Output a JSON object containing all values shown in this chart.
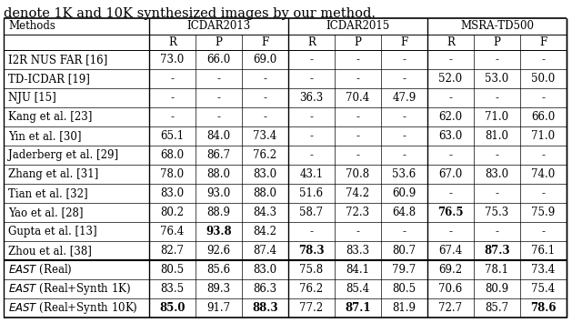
{
  "caption": "denote 1K and 10K synthesized images by our method.",
  "rows": [
    {
      "method": "I2R NUS FAR [16]",
      "italic": false,
      "values": [
        "73.0",
        "66.0",
        "69.0",
        "-",
        "-",
        "-",
        "-",
        "-",
        "-"
      ],
      "bold": []
    },
    {
      "method": "TD-ICDAR [19]",
      "italic": false,
      "values": [
        "-",
        "-",
        "-",
        "-",
        "-",
        "-",
        "52.0",
        "53.0",
        "50.0"
      ],
      "bold": []
    },
    {
      "method": "NJU [15]",
      "italic": false,
      "values": [
        "-",
        "-",
        "-",
        "36.3",
        "70.4",
        "47.9",
        "-",
        "-",
        "-"
      ],
      "bold": []
    },
    {
      "method": "Kang et al. [23]",
      "italic": false,
      "values": [
        "-",
        "-",
        "-",
        "-",
        "-",
        "-",
        "62.0",
        "71.0",
        "66.0"
      ],
      "bold": []
    },
    {
      "method": "Yin et al. [30]",
      "italic": false,
      "values": [
        "65.1",
        "84.0",
        "73.4",
        "-",
        "-",
        "-",
        "63.0",
        "81.0",
        "71.0"
      ],
      "bold": []
    },
    {
      "method": "Jaderberg et al. [29]",
      "italic": false,
      "values": [
        "68.0",
        "86.7",
        "76.2",
        "-",
        "-",
        "-",
        "-",
        "-",
        "-"
      ],
      "bold": []
    },
    {
      "method": "Zhang et al. [31]",
      "italic": false,
      "values": [
        "78.0",
        "88.0",
        "83.0",
        "43.1",
        "70.8",
        "53.6",
        "67.0",
        "83.0",
        "74.0"
      ],
      "bold": []
    },
    {
      "method": "Tian et al. [32]",
      "italic": false,
      "values": [
        "83.0",
        "93.0",
        "88.0",
        "51.6",
        "74.2",
        "60.9",
        "-",
        "-",
        "-"
      ],
      "bold": []
    },
    {
      "method": "Yao et al. [28]",
      "italic": false,
      "values": [
        "80.2",
        "88.9",
        "84.3",
        "58.7",
        "72.3",
        "64.8",
        "76.5",
        "75.3",
        "75.9"
      ],
      "bold": [
        6
      ]
    },
    {
      "method": "Gupta et al. [13]",
      "italic": false,
      "values": [
        "76.4",
        "93.8",
        "84.2",
        "-",
        "-",
        "-",
        "-",
        "-",
        "-"
      ],
      "bold": [
        1
      ]
    },
    {
      "method": "Zhou et al. [38]",
      "italic": false,
      "values": [
        "82.7",
        "92.6",
        "87.4",
        "78.3",
        "83.3",
        "80.7",
        "67.4",
        "87.3",
        "76.1"
      ],
      "bold": [
        3,
        7
      ]
    },
    {
      "method": "EAST (Real)",
      "italic": true,
      "values": [
        "80.5",
        "85.6",
        "83.0",
        "75.8",
        "84.1",
        "79.7",
        "69.2",
        "78.1",
        "73.4"
      ],
      "bold": [],
      "separator_above": true
    },
    {
      "method": "EAST (Real+Synth 1K)",
      "italic": true,
      "values": [
        "83.5",
        "89.3",
        "86.3",
        "76.2",
        "85.4",
        "80.5",
        "70.6",
        "80.9",
        "75.4"
      ],
      "bold": []
    },
    {
      "method": "EAST (Real+Synth 10K)",
      "italic": true,
      "values": [
        "85.0",
        "91.7",
        "88.3",
        "77.2",
        "87.1",
        "81.9",
        "72.7",
        "85.7",
        "78.6"
      ],
      "bold": [
        0,
        2,
        4,
        8
      ]
    }
  ],
  "font_size": 8.5,
  "caption_font_size": 10.5
}
